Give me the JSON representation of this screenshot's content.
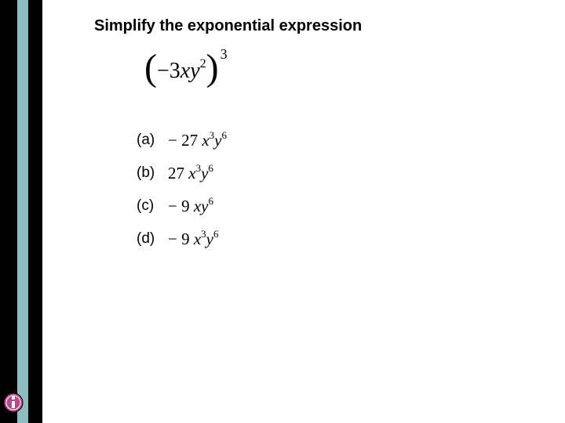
{
  "sidebar": {
    "stripe1_color": "#000000",
    "stripe2_color": "#8fbcbf",
    "stripe3_color": "#000000"
  },
  "question": {
    "title": "Simplify the exponential expression",
    "expression": {
      "coefficient": "−3",
      "var1": "x",
      "var2": "y",
      "var2_exp": "2",
      "outer_exp": "3"
    }
  },
  "options": [
    {
      "label": "(a)",
      "coefficient": "− 27",
      "terms": [
        {
          "v": "x",
          "e": "3"
        },
        {
          "v": "y",
          "e": "6"
        }
      ]
    },
    {
      "label": "(b)",
      "coefficient": "27",
      "terms": [
        {
          "v": "x",
          "e": "3"
        },
        {
          "v": "y",
          "e": "6"
        }
      ]
    },
    {
      "label": "(c)",
      "coefficient": "− 9",
      "terms": [
        {
          "v": "x",
          "e": ""
        },
        {
          "v": "y",
          "e": "6"
        }
      ]
    },
    {
      "label": "(d)",
      "coefficient": "− 9",
      "terms": [
        {
          "v": "x",
          "e": "3"
        },
        {
          "v": "y",
          "e": "6"
        }
      ]
    }
  ],
  "colors": {
    "text": "#000000",
    "background": "#ffffff",
    "icon_fill": "#b94a8a",
    "icon_ring": "#ffffff"
  }
}
